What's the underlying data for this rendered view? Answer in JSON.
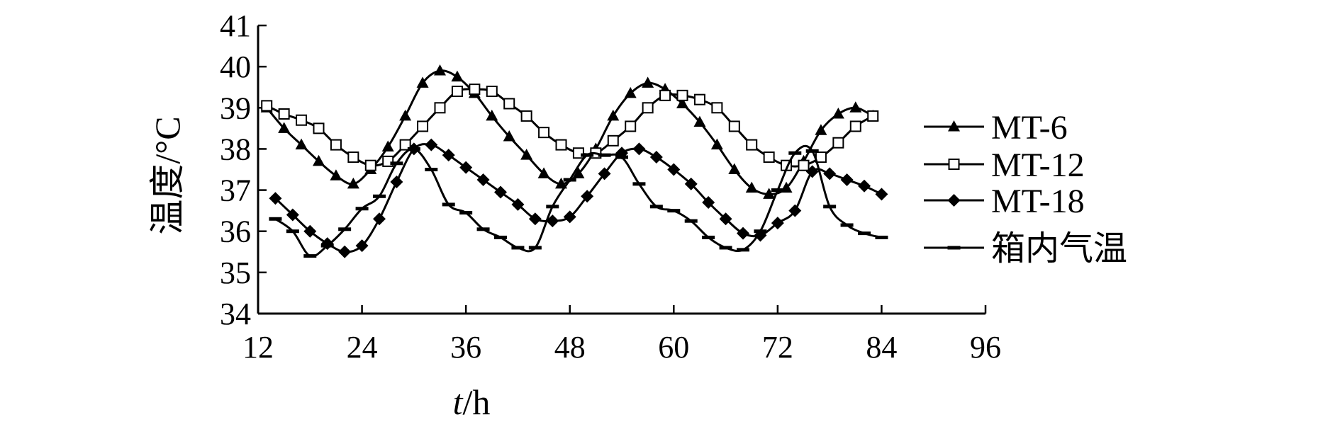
{
  "chart_data": {
    "type": "line",
    "xlabel_italic": "t",
    "xlabel_unit": "/h",
    "ylabel": "温度/°C",
    "xlim": [
      12,
      96
    ],
    "ylim": [
      34,
      41
    ],
    "xticks": [
      12,
      24,
      36,
      48,
      60,
      72,
      84,
      96
    ],
    "yticks": [
      34,
      35,
      36,
      37,
      38,
      39,
      40,
      41
    ],
    "legend_position": "right",
    "series": [
      {
        "name": "MT-6",
        "marker": "triangle",
        "x": [
          13,
          15,
          17,
          19,
          21,
          23,
          25,
          27,
          29,
          31,
          33,
          35,
          37,
          39,
          41,
          43,
          45,
          47,
          49,
          51,
          53,
          55,
          57,
          59,
          61,
          63,
          65,
          67,
          69,
          71,
          73,
          75,
          77,
          79,
          81,
          83
        ],
        "y": [
          39.0,
          38.5,
          38.1,
          37.7,
          37.35,
          37.15,
          37.5,
          38.05,
          38.8,
          39.6,
          39.9,
          39.75,
          39.35,
          38.8,
          38.3,
          37.85,
          37.4,
          37.15,
          37.4,
          38.0,
          38.8,
          39.35,
          39.6,
          39.45,
          39.1,
          38.65,
          38.1,
          37.5,
          37.05,
          36.9,
          37.05,
          37.7,
          38.45,
          38.85,
          39.0,
          38.8
        ]
      },
      {
        "name": "MT-12",
        "marker": "square-open",
        "x": [
          13,
          15,
          17,
          19,
          21,
          23,
          25,
          27,
          29,
          31,
          33,
          35,
          37,
          39,
          41,
          43,
          45,
          47,
          49,
          51,
          53,
          55,
          57,
          59,
          61,
          63,
          65,
          67,
          69,
          71,
          73,
          75,
          77,
          79,
          81,
          83
        ],
        "y": [
          39.05,
          38.85,
          38.7,
          38.5,
          38.1,
          37.8,
          37.6,
          37.7,
          38.1,
          38.55,
          39.0,
          39.4,
          39.45,
          39.4,
          39.1,
          38.8,
          38.4,
          38.1,
          37.9,
          37.9,
          38.2,
          38.55,
          39.0,
          39.3,
          39.3,
          39.2,
          39.0,
          38.55,
          38.1,
          37.8,
          37.6,
          37.6,
          37.8,
          38.15,
          38.55,
          38.8
        ]
      },
      {
        "name": "MT-18",
        "marker": "diamond",
        "x": [
          14,
          16,
          18,
          20,
          22,
          24,
          26,
          28,
          30,
          32,
          34,
          36,
          38,
          40,
          42,
          44,
          46,
          48,
          50,
          52,
          54,
          56,
          58,
          60,
          62,
          64,
          66,
          68,
          70,
          72,
          74,
          76,
          78,
          80,
          82,
          84
        ],
        "y": [
          36.8,
          36.4,
          36.0,
          35.7,
          35.5,
          35.65,
          36.3,
          37.2,
          38.0,
          38.1,
          37.85,
          37.55,
          37.25,
          36.95,
          36.65,
          36.3,
          36.25,
          36.35,
          36.85,
          37.4,
          37.9,
          38.0,
          37.8,
          37.5,
          37.15,
          36.7,
          36.3,
          35.95,
          35.9,
          36.2,
          36.5,
          37.45,
          37.4,
          37.25,
          37.1,
          36.9
        ]
      },
      {
        "name": "箱内气温",
        "marker": "dash",
        "x": [
          14,
          16,
          18,
          20,
          22,
          24,
          26,
          28,
          30,
          32,
          34,
          36,
          38,
          40,
          42,
          44,
          46,
          48,
          50,
          52,
          54,
          56,
          58,
          60,
          62,
          64,
          66,
          68,
          70,
          72,
          74,
          76,
          78,
          80,
          82,
          84
        ],
        "y": [
          36.3,
          36.0,
          35.4,
          35.65,
          36.05,
          36.55,
          36.85,
          37.65,
          38.0,
          37.5,
          36.65,
          36.45,
          36.05,
          35.85,
          35.6,
          35.6,
          36.6,
          37.25,
          37.85,
          37.85,
          37.8,
          37.15,
          36.6,
          36.5,
          36.25,
          35.85,
          35.6,
          35.55,
          36.0,
          37.0,
          37.9,
          37.95,
          36.6,
          36.15,
          35.95,
          35.85
        ]
      }
    ]
  }
}
